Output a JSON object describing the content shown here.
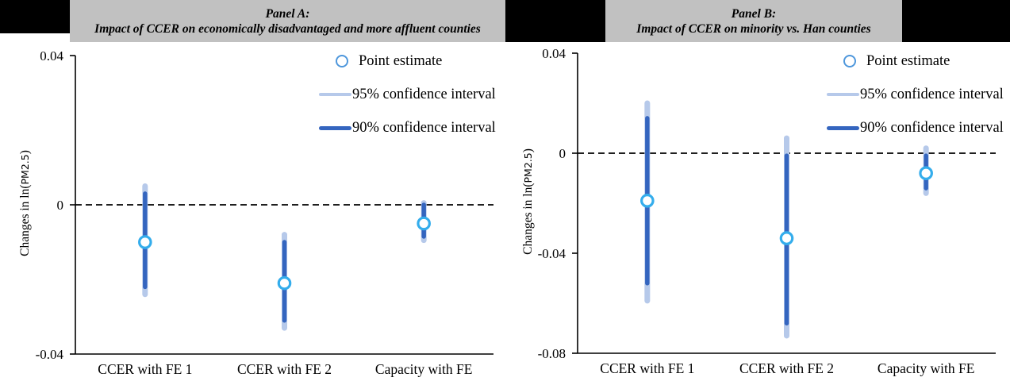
{
  "figure": {
    "panel_a_title_line1": "Panel A:",
    "panel_a_title_line2": "Impact of CCER on economically disadvantaged and more affluent counties",
    "panel_b_title_line1": "Panel B:",
    "panel_b_title_line2": "Impact of CCER on minority vs. Han counties"
  },
  "legend": {
    "point_label": "Point estimate",
    "ci95_label": "95% confidence interval",
    "ci90_label": "90% confidence interval"
  },
  "colors": {
    "header_gray": "#c1c1c1",
    "header_black": "#000000",
    "ci90_blue": "#3465bf",
    "ci95_light_blue": "#b6c9ea",
    "marker_blue": "#34adec",
    "legend_circle_blue": "#4e97dc",
    "axis_color": "#000000"
  },
  "chart_data": [
    {
      "type": "scatter",
      "panel": "A",
      "title": "Panel A: Impact of CCER on economically disadvantaged and more affluent counties",
      "ylabel": "Changes in ln(PM2.5)",
      "ylim": [
        -0.04,
        0.04
      ],
      "yticks": [
        0.04,
        0,
        -0.04
      ],
      "ytick_labels": [
        "0.04",
        "0",
        "-0.04"
      ],
      "zero_reference_line": "dashed",
      "legend_position": "top-right",
      "categories": [
        "CCER with FE 1",
        "CCER with FE 2",
        "Capacity with FE"
      ],
      "points": [
        {
          "category": "CCER with FE 1",
          "estimate": -0.01,
          "ci90": [
            -0.022,
            0.003
          ],
          "ci95": [
            -0.024,
            0.005
          ]
        },
        {
          "category": "CCER with FE 2",
          "estimate": -0.021,
          "ci90": [
            -0.031,
            -0.01
          ],
          "ci95": [
            -0.033,
            -0.008
          ]
        },
        {
          "category": "Capacity with FE",
          "estimate": -0.005,
          "ci90": [
            -0.0085,
            0.0
          ],
          "ci95": [
            -0.0095,
            0.0005
          ]
        }
      ]
    },
    {
      "type": "scatter",
      "panel": "B",
      "title": "Panel B: Impact of CCER on minority vs. Han counties",
      "ylabel": "Changes in ln(PM2.5)",
      "ylim": [
        -0.08,
        0.04
      ],
      "yticks": [
        0.04,
        0,
        -0.04,
        -0.08
      ],
      "ytick_labels": [
        "0.04",
        "0",
        "-0.04",
        "-0.08"
      ],
      "zero_reference_line": "dashed",
      "legend_position": "top-right",
      "categories": [
        "CCER with FE 1",
        "CCER with FE 2",
        "Capacity with FE"
      ],
      "points": [
        {
          "category": "CCER with FE 1",
          "estimate": -0.019,
          "ci90": [
            -0.052,
            0.014
          ],
          "ci95": [
            -0.059,
            0.02
          ]
        },
        {
          "category": "CCER with FE 2",
          "estimate": -0.034,
          "ci90": [
            -0.068,
            -0.001
          ],
          "ci95": [
            -0.073,
            0.006
          ]
        },
        {
          "category": "Capacity with FE",
          "estimate": -0.008,
          "ci90": [
            -0.014,
            -0.001
          ],
          "ci95": [
            -0.016,
            0.002
          ]
        }
      ]
    }
  ]
}
